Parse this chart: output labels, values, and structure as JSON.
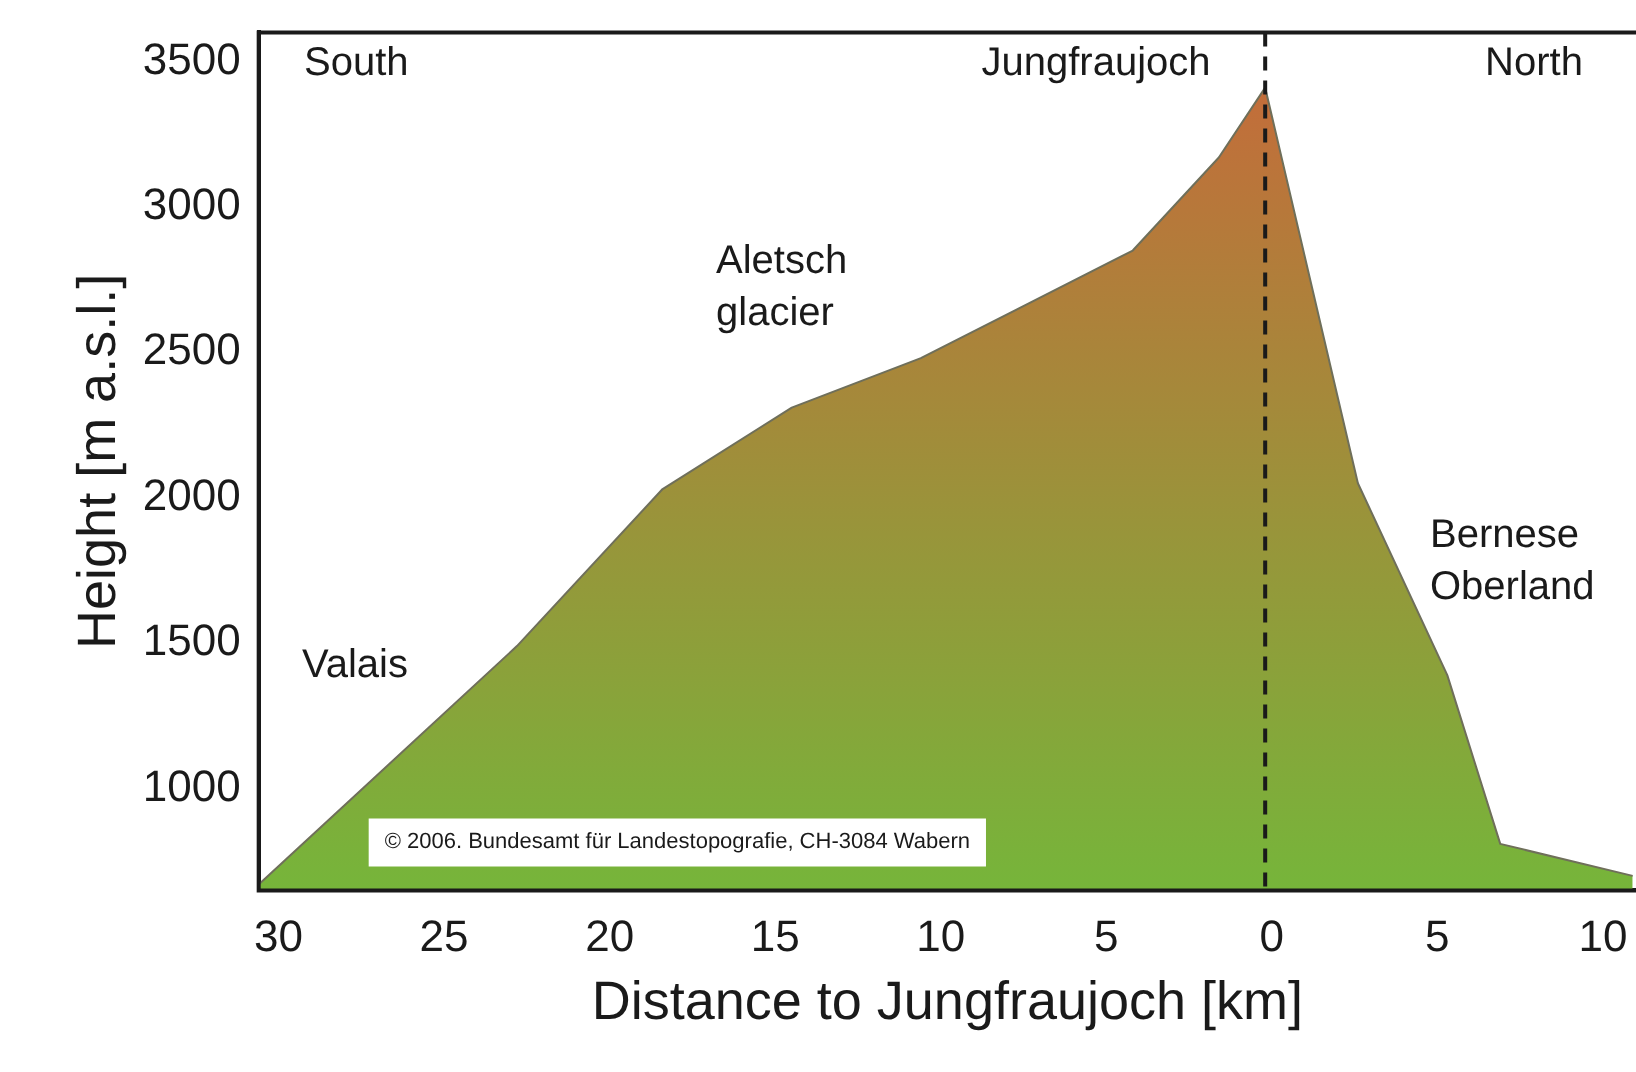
{
  "chart_data": {
    "type": "area",
    "xlabel": "Distance to Jungfraujoch [km]",
    "ylabel": "Height [m a.s.l.]",
    "x": [
      -30.6,
      -22.8,
      -18.4,
      -14.5,
      -10.6,
      -4.2,
      -1.6,
      -0.2,
      2.6,
      5.3,
      6.9,
      10.9
    ],
    "series": [
      {
        "color": "#76b53a",
        "values": [
          670,
          1490,
          2030,
          2310,
          2480,
          2850,
          3170,
          3410,
          2050,
          1390,
          810,
          700
        ]
      }
    ],
    "xlim": [
      -30.6,
      11.0
    ],
    "ylim": [
      650,
      3600
    ],
    "xticks": [
      {
        "value": -30,
        "label": "30"
      },
      {
        "value": -25,
        "label": "25"
      },
      {
        "value": -20,
        "label": "20"
      },
      {
        "value": -15,
        "label": "15"
      },
      {
        "value": -10,
        "label": "10"
      },
      {
        "value": -5,
        "label": "5"
      },
      0,
      5,
      10
    ],
    "yticks": [
      1000,
      1500,
      2000,
      2500,
      3000,
      3500
    ],
    "grid": false,
    "legend": false,
    "ref_lines": [
      {
        "axis": "x",
        "value": -0.2,
        "line_style": "dashed",
        "color": "#1a1a1a"
      }
    ],
    "annotations": [
      "South",
      "North",
      "Jungfraujoch",
      "Aletsch\nglacier",
      "Valais",
      "Bernese\nOberland",
      "© 2006. Bundesamt für Landestopografie, CH-3084 Wabern"
    ]
  }
}
